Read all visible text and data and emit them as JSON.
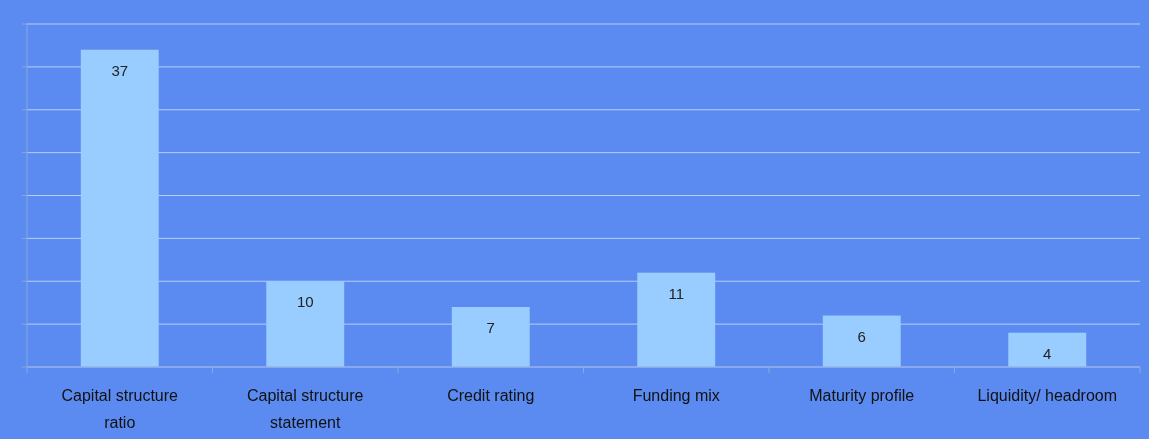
{
  "chart_data": {
    "type": "bar",
    "categories": [
      "Capital structure ratio",
      "Capital structure statement",
      "Credit rating",
      "Funding mix",
      "Maturity profile",
      "Liquidity/ headroom"
    ],
    "values": [
      37,
      10,
      7,
      11,
      6,
      4
    ],
    "color": "#99ccff",
    "data_labels": true,
    "grid": "y",
    "tick_labels": "x",
    "ylim": [
      0,
      40
    ],
    "yticks": [
      {
        "value": 0,
        "label": null
      },
      {
        "value": 5,
        "label": null
      },
      {
        "value": 10,
        "label": null
      },
      {
        "value": 15,
        "label": null
      },
      {
        "value": 20,
        "label": null
      },
      {
        "value": 25,
        "label": null
      },
      {
        "value": 30,
        "label": null
      },
      {
        "value": 35,
        "label": null
      },
      {
        "value": 40,
        "label": null
      }
    ]
  }
}
